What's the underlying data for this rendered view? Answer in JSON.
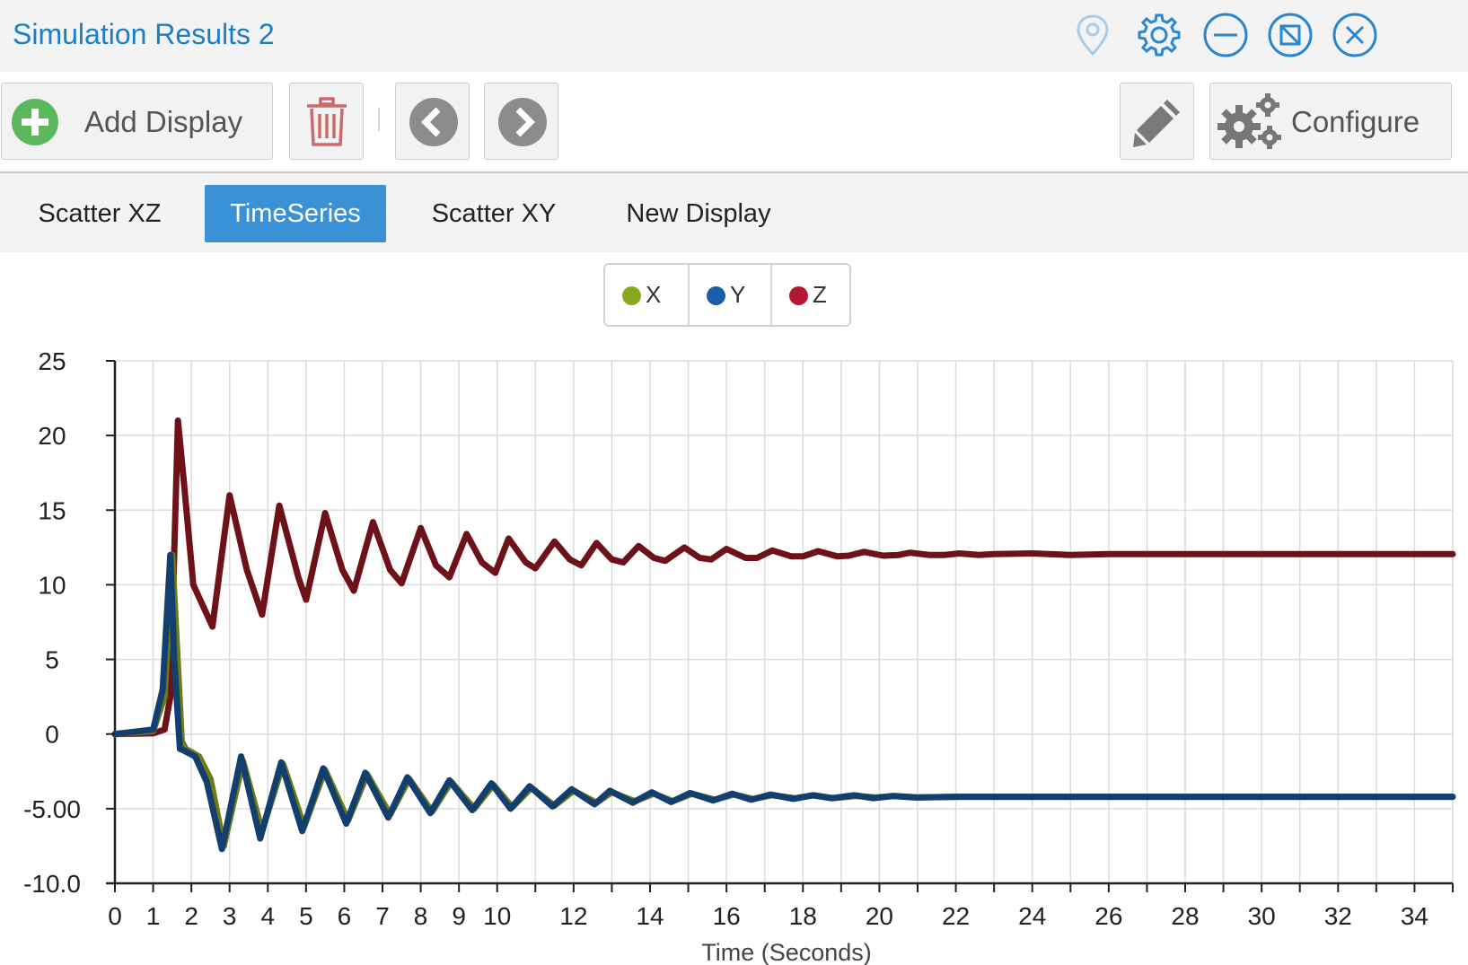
{
  "window": {
    "title": "Simulation Results 2",
    "icons": [
      "map-pin-icon",
      "gear-icon",
      "minimize-icon",
      "popout-icon",
      "close-icon"
    ]
  },
  "toolbar": {
    "add_display_label": "Add Display",
    "configure_label": "Configure"
  },
  "tabs": [
    {
      "label": "Scatter XZ",
      "active": false
    },
    {
      "label": "TimeSeries",
      "active": true
    },
    {
      "label": "Scatter XY",
      "active": false
    },
    {
      "label": "New Display",
      "active": false
    }
  ],
  "colors": {
    "accent": "#3a91d6",
    "title": "#1b7fc7",
    "add_green": "#5cb85c",
    "delete_red": "#c9302c",
    "series_x": "#6b7c16",
    "series_y": "#123f6e",
    "series_z": "#6e1219",
    "legend_x": "#8aa81d",
    "legend_y": "#1a5ea8",
    "legend_z": "#b3182e"
  },
  "chart_data": {
    "type": "line",
    "xlabel": "Time (Seconds)",
    "ylabel": "",
    "xlim": [
      0,
      35
    ],
    "ylim": [
      -10,
      25
    ],
    "grid": true,
    "legend_position": "top-center",
    "x_ticks": [
      0,
      1,
      2,
      3,
      4,
      5,
      6,
      7,
      8,
      9,
      10,
      12,
      14,
      16,
      18,
      20,
      22,
      24,
      26,
      28,
      30,
      32,
      34
    ],
    "y_ticks": [
      {
        "value": 25,
        "label": "25"
      },
      {
        "value": 20,
        "label": "20"
      },
      {
        "value": 15,
        "label": "15"
      },
      {
        "value": 10,
        "label": "10"
      },
      {
        "value": 5,
        "label": "5"
      },
      {
        "value": 0,
        "label": "0"
      },
      {
        "value": -5,
        "label": "-5.00"
      },
      {
        "value": -10,
        "label": "-10.0"
      }
    ],
    "series": [
      {
        "name": "X",
        "color": "#6b7c16",
        "points": [
          [
            0,
            0
          ],
          [
            1,
            0.2
          ],
          [
            1.3,
            2.5
          ],
          [
            1.5,
            12
          ],
          [
            1.6,
            7
          ],
          [
            1.75,
            -0.5
          ],
          [
            1.85,
            -1
          ],
          [
            2.2,
            -1.5
          ],
          [
            2.5,
            -3
          ],
          [
            2.85,
            -7.5
          ],
          [
            3.35,
            -1.8
          ],
          [
            3.85,
            -6.5
          ],
          [
            4.4,
            -2
          ],
          [
            4.95,
            -6.2
          ],
          [
            5.5,
            -2.4
          ],
          [
            6.1,
            -5.8
          ],
          [
            6.6,
            -2.7
          ],
          [
            7.2,
            -5.4
          ],
          [
            7.7,
            -3
          ],
          [
            8.3,
            -5.2
          ],
          [
            8.8,
            -3.2
          ],
          [
            9.4,
            -5
          ],
          [
            9.9,
            -3.4
          ],
          [
            10.4,
            -4.9
          ],
          [
            10.9,
            -3.6
          ],
          [
            11.5,
            -4.8
          ],
          [
            12.0,
            -3.8
          ],
          [
            12.6,
            -4.6
          ],
          [
            13.0,
            -3.9
          ],
          [
            13.6,
            -4.5
          ],
          [
            14.1,
            -4.0
          ],
          [
            14.6,
            -4.5
          ],
          [
            15.1,
            -4.0
          ],
          [
            15.7,
            -4.4
          ],
          [
            16.2,
            -4.05
          ],
          [
            16.7,
            -4.35
          ],
          [
            17.2,
            -4.1
          ],
          [
            17.8,
            -4.3
          ],
          [
            18.3,
            -4.1
          ],
          [
            18.8,
            -4.3
          ],
          [
            19.4,
            -4.15
          ],
          [
            19.9,
            -4.25
          ],
          [
            20.4,
            -4.15
          ],
          [
            21.0,
            -4.25
          ],
          [
            22,
            -4.2
          ],
          [
            35,
            -4.2
          ]
        ]
      },
      {
        "name": "Y",
        "color": "#123f6e",
        "points": [
          [
            0,
            0
          ],
          [
            1,
            0.3
          ],
          [
            1.25,
            3
          ],
          [
            1.45,
            12
          ],
          [
            1.55,
            5
          ],
          [
            1.7,
            -1
          ],
          [
            1.8,
            -1.1
          ],
          [
            2.1,
            -1.5
          ],
          [
            2.4,
            -3.2
          ],
          [
            2.8,
            -7.7
          ],
          [
            3.3,
            -1.5
          ],
          [
            3.8,
            -7
          ],
          [
            4.35,
            -1.9
          ],
          [
            4.9,
            -6.5
          ],
          [
            5.45,
            -2.3
          ],
          [
            6.05,
            -6
          ],
          [
            6.55,
            -2.6
          ],
          [
            7.15,
            -5.6
          ],
          [
            7.65,
            -2.9
          ],
          [
            8.25,
            -5.3
          ],
          [
            8.75,
            -3.1
          ],
          [
            9.35,
            -5.1
          ],
          [
            9.85,
            -3.3
          ],
          [
            10.35,
            -5.0
          ],
          [
            10.85,
            -3.5
          ],
          [
            11.45,
            -4.85
          ],
          [
            11.95,
            -3.7
          ],
          [
            12.55,
            -4.7
          ],
          [
            12.95,
            -3.8
          ],
          [
            13.55,
            -4.6
          ],
          [
            14.05,
            -3.9
          ],
          [
            14.55,
            -4.55
          ],
          [
            15.05,
            -3.95
          ],
          [
            15.65,
            -4.45
          ],
          [
            16.15,
            -4.0
          ],
          [
            16.65,
            -4.4
          ],
          [
            17.15,
            -4.05
          ],
          [
            17.75,
            -4.35
          ],
          [
            18.25,
            -4.1
          ],
          [
            18.75,
            -4.3
          ],
          [
            19.35,
            -4.1
          ],
          [
            19.85,
            -4.3
          ],
          [
            20.35,
            -4.15
          ],
          [
            20.95,
            -4.25
          ],
          [
            22,
            -4.2
          ],
          [
            35,
            -4.2
          ]
        ]
      },
      {
        "name": "Z",
        "color": "#6e1219",
        "points": [
          [
            0,
            0
          ],
          [
            1.0,
            0.05
          ],
          [
            1.3,
            0.3
          ],
          [
            1.45,
            2.5
          ],
          [
            1.55,
            12
          ],
          [
            1.65,
            21
          ],
          [
            1.8,
            17
          ],
          [
            2.05,
            10
          ],
          [
            2.55,
            7.2
          ],
          [
            3.0,
            16
          ],
          [
            3.45,
            11
          ],
          [
            3.85,
            8.0
          ],
          [
            4.3,
            15.3
          ],
          [
            4.8,
            10.5
          ],
          [
            5.0,
            9.0
          ],
          [
            5.5,
            14.8
          ],
          [
            5.95,
            11
          ],
          [
            6.25,
            9.6
          ],
          [
            6.75,
            14.2
          ],
          [
            7.2,
            11
          ],
          [
            7.5,
            10.1
          ],
          [
            8.0,
            13.8
          ],
          [
            8.4,
            11.3
          ],
          [
            8.75,
            10.5
          ],
          [
            9.2,
            13.4
          ],
          [
            9.6,
            11.5
          ],
          [
            9.95,
            10.8
          ],
          [
            10.3,
            13.1
          ],
          [
            10.75,
            11.5
          ],
          [
            11.0,
            11.1
          ],
          [
            11.5,
            12.9
          ],
          [
            11.9,
            11.7
          ],
          [
            12.2,
            11.3
          ],
          [
            12.6,
            12.8
          ],
          [
            13.0,
            11.7
          ],
          [
            13.3,
            11.5
          ],
          [
            13.7,
            12.6
          ],
          [
            14.1,
            11.8
          ],
          [
            14.4,
            11.6
          ],
          [
            14.9,
            12.5
          ],
          [
            15.3,
            11.8
          ],
          [
            15.6,
            11.7
          ],
          [
            16.0,
            12.4
          ],
          [
            16.5,
            11.8
          ],
          [
            16.8,
            11.8
          ],
          [
            17.2,
            12.3
          ],
          [
            17.7,
            11.9
          ],
          [
            18.0,
            11.9
          ],
          [
            18.4,
            12.25
          ],
          [
            18.9,
            11.9
          ],
          [
            19.2,
            11.95
          ],
          [
            19.6,
            12.2
          ],
          [
            20.1,
            11.95
          ],
          [
            20.5,
            12.0
          ],
          [
            20.8,
            12.15
          ],
          [
            21.3,
            12.0
          ],
          [
            21.7,
            12.0
          ],
          [
            22.1,
            12.1
          ],
          [
            22.6,
            12.0
          ],
          [
            23,
            12.05
          ],
          [
            24,
            12.1
          ],
          [
            25,
            12.0
          ],
          [
            26,
            12.05
          ],
          [
            28,
            12.05
          ],
          [
            30,
            12.05
          ],
          [
            35,
            12.05
          ]
        ]
      }
    ]
  }
}
